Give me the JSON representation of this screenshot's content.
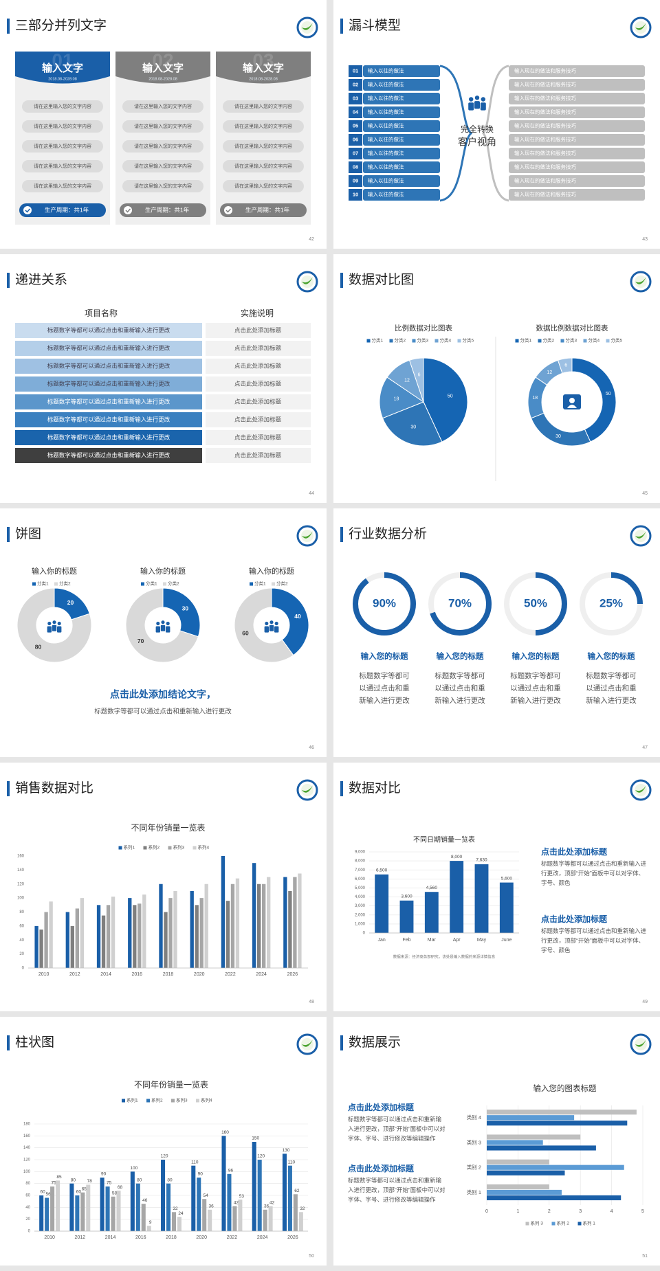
{
  "slides": [
    {
      "title": "三部分并列文字",
      "page": 42,
      "columns": [
        {
          "heading": "输入文字",
          "number": "01",
          "date": "2018.08-2028.08",
          "color": "#1a5fa8",
          "items": [
            "请在这里输入您的文字内容",
            "请在这里输入您的文字内容",
            "请在这里输入您的文字内容",
            "请在这里输入您的文字内容",
            "请在这里输入您的文字内容"
          ],
          "footer": "生产周期：共1年"
        },
        {
          "heading": "输入文字",
          "number": "02",
          "date": "2018.08-2028.08",
          "color": "#7f7f7f",
          "items": [
            "请在这里输入您的文字内容",
            "请在这里输入您的文字内容",
            "请在这里输入您的文字内容",
            "请在这里输入您的文字内容",
            "请在这里输入您的文字内容"
          ],
          "footer": "生产周期：共1年"
        },
        {
          "heading": "输入文字",
          "number": "03",
          "date": "2018.08-2028.08",
          "color": "#7f7f7f",
          "items": [
            "请在这里输入您的文字内容",
            "请在这里输入您的文字内容",
            "请在这里输入您的文字内容",
            "请在这里输入您的文字内容",
            "请在这里输入您的文字内容"
          ],
          "footer": "生产周期：共1年"
        }
      ]
    },
    {
      "title": "漏斗模型",
      "page": 43,
      "left": [
        {
          "number": "01",
          "text": "输入以往的做法"
        },
        {
          "number": "02",
          "text": "输入以往的做法"
        },
        {
          "number": "03",
          "text": "输入以往的做法"
        },
        {
          "number": "04",
          "text": "输入以往的做法"
        },
        {
          "number": "05",
          "text": "输入以往的做法"
        },
        {
          "number": "06",
          "text": "输入以往的做法"
        },
        {
          "number": "07",
          "text": "输入以往的做法"
        },
        {
          "number": "08",
          "text": "输入以往的做法"
        },
        {
          "number": "09",
          "text": "输入以往的做法"
        },
        {
          "number": "10",
          "text": "输入以往的做法"
        }
      ],
      "center": [
        "完全转换",
        "客户视角"
      ],
      "right": [
        "输入现在的做法和服务技巧",
        "输入现在的做法和服务技巧",
        "输入现在的做法和服务技巧",
        "输入现在的做法和服务技巧",
        "输入现在的做法和服务技巧",
        "输入现在的做法和服务技巧",
        "输入现在的做法和服务技巧",
        "输入现在的做法和服务技巧",
        "输入现在的做法和服务技巧",
        "输入现在的做法和服务技巧"
      ]
    },
    {
      "title": "递进关系",
      "page": 44,
      "headers": [
        "项目名称",
        "实施说明"
      ],
      "rows": [
        [
          "标题数字等都可以通过点击和重新输入进行更改",
          "点击此处添加标题"
        ],
        [
          "标题数字等都可以通过点击和重新输入进行更改",
          "点击此处添加标题"
        ],
        [
          "标题数字等都可以通过点击和重新输入进行更改",
          "点击此处添加标题"
        ],
        [
          "标题数字等都可以通过点击和重新输入进行更改",
          "点击此处添加标题"
        ],
        [
          "标题数字等都可以通过点击和重新输入进行更改",
          "点击此处添加标题"
        ],
        [
          "标题数字等都可以通过点击和重新输入进行更改",
          "点击此处添加标题"
        ],
        [
          "标题数字等都可以通过点击和重新输入进行更改",
          "点击此处添加标题"
        ],
        [
          "标题数字等都可以通过点击和重新输入进行更改",
          "点击此处添加标题"
        ]
      ],
      "row_colors": [
        "#c9dcef",
        "#b4cfe9",
        "#9fc1e3",
        "#7fadd8",
        "#5b96cb",
        "#3a80c0",
        "#1a64ac",
        "#3f3f3f"
      ]
    },
    {
      "title": "数据对比图",
      "page": 45,
      "charts": [
        {
          "type": "pie",
          "title": "比例数据对比图表",
          "categories": [
            "分类1",
            "分类2",
            "分类3",
            "分类4",
            "分类5"
          ],
          "values": [
            50,
            30,
            18,
            12,
            6
          ],
          "colors": [
            "#1565b3",
            "#2e75b6",
            "#4a8cc7",
            "#6fa3d3",
            "#9dc0e3"
          ]
        },
        {
          "type": "donut",
          "title": "数据比例数据对比图表",
          "categories": [
            "分类1",
            "分类2",
            "分类3",
            "分类4",
            "分类5"
          ],
          "values": [
            50,
            30,
            18,
            12,
            6
          ],
          "colors": [
            "#1565b3",
            "#2e75b6",
            "#4a8cc7",
            "#6fa3d3",
            "#9dc0e3"
          ]
        }
      ]
    },
    {
      "title": "饼图",
      "page": 46,
      "charts": [
        {
          "type": "donut",
          "title": "输入你的标题",
          "categories": [
            "分类1",
            "分类2"
          ],
          "values": [
            20,
            80
          ],
          "colors": [
            "#1565b3",
            "#d9d9d9"
          ]
        },
        {
          "type": "donut",
          "title": "输入你的标题",
          "categories": [
            "分类1",
            "分类2"
          ],
          "values": [
            30,
            70
          ],
          "colors": [
            "#1565b3",
            "#d9d9d9"
          ]
        },
        {
          "type": "donut",
          "title": "输入你的标题",
          "categories": [
            "分类1",
            "分类2"
          ],
          "values": [
            40,
            60
          ],
          "colors": [
            "#1565b3",
            "#d9d9d9"
          ]
        }
      ],
      "conclusion": "点击此处添加结论文字，",
      "note": "标题数字等都可以通过点击和重新输入进行更改"
    },
    {
      "title": "行业数据分析",
      "page": 47,
      "chart": {
        "type": "ring",
        "values": [
          90,
          70,
          50,
          25
        ],
        "value_labels": [
          "90%",
          "70%",
          "50%",
          "25%"
        ],
        "ylim": [
          0,
          100
        ],
        "color": "#1a5fa8"
      },
      "headings": [
        "输入您的标题",
        "输入您的标题",
        "输入您的标题",
        "输入您的标题"
      ],
      "texts": [
        [
          "标题数字等都可",
          "以通过点击和重",
          "新输入进行更改"
        ],
        [
          "标题数字等都可",
          "以通过点击和重",
          "新输入进行更改"
        ],
        [
          "标题数字等都可",
          "以通过点击和重",
          "新输入进行更改"
        ],
        [
          "标题数字等都可",
          "以通过点击和重",
          "新输入进行更改"
        ]
      ]
    },
    {
      "title": "销售数据对比",
      "page": 48,
      "chart": {
        "type": "bar",
        "title": "不同年份销量一览表",
        "categories": [
          "2010",
          "2012",
          "2014",
          "2016",
          "2018",
          "2020",
          "2022",
          "2024",
          "2026"
        ],
        "series": [
          {
            "name": "系列1",
            "color": "#1a5fa8",
            "values": [
              60,
              80,
              90,
              100,
              120,
              110,
              160,
              150,
              130
            ]
          },
          {
            "name": "系列2",
            "color": "#7f7f7f",
            "values": [
              55,
              60,
              75,
              90,
              80,
              90,
              96,
              120,
              110
            ]
          },
          {
            "name": "系列3",
            "color": "#a6a6a6",
            "values": [
              80,
              85,
              90,
              92,
              100,
              100,
              120,
              120,
              130
            ]
          },
          {
            "name": "系列4",
            "color": "#d0d0d0",
            "values": [
              95,
              100,
              102,
              105,
              110,
              120,
              128,
              130,
              135
            ]
          }
        ],
        "ylim": [
          0,
          160
        ],
        "yticks": [
          0,
          20,
          40,
          60,
          80,
          100,
          120,
          140,
          160
        ],
        "grid": false
      }
    },
    {
      "title": "数据对比",
      "page": 49,
      "chart": {
        "type": "bar",
        "title": "不同日期销量一览表",
        "categories": [
          "Jan",
          "Feb",
          "Mar",
          "Apr",
          "May",
          "June"
        ],
        "values": [
          6500,
          3600,
          4560,
          8000,
          7630,
          5600
        ],
        "value_labels": [
          "6,500",
          "3,600",
          "4,560",
          "8,000",
          "7,630",
          "5,600"
        ],
        "color": "#1a5fa8",
        "ylim": [
          0,
          9000
        ],
        "yticks": [
          0,
          {
            "value": 1000,
            "label": "1,000"
          },
          {
            "value": 2000,
            "label": "2,000"
          },
          {
            "value": 3000,
            "label": "3,000"
          },
          {
            "value": 4000,
            "label": "4,000"
          },
          {
            "value": 5000,
            "label": "5,000"
          },
          {
            "value": 6000,
            "label": "6,000"
          },
          {
            "value": 7000,
            "label": "7,000"
          },
          {
            "value": 8000,
            "label": "8,000"
          },
          {
            "value": 9000,
            "label": "9,000"
          }
        ],
        "grid": true,
        "note": "数据来源：经济商务部研究，该处是输入数据的来源详情信息"
      },
      "blocks": [
        {
          "heading": "点击此处添加标题",
          "text": "标题数字等都可以通过点击和重新输入进行更改，顶部“开始”面板中可以对字体、字号、颜色"
        },
        {
          "heading": "点击此处添加标题",
          "text": "标题数字等都可以通过点击和重新输入进行更改，顶部“开始”面板中可以对字体、字号、颜色"
        }
      ]
    },
    {
      "title": "柱状图",
      "page": 50,
      "chart": {
        "type": "bar",
        "title": "不同年份销量一览表",
        "categories": [
          "2010",
          "2012",
          "2014",
          "2016",
          "2018",
          "2020",
          "2022",
          "2024",
          "2026"
        ],
        "series": [
          {
            "name": "系列1",
            "color": "#1a5fa8",
            "values": [
              60,
              80,
              90,
              100,
              120,
              110,
              160,
              150,
              130
            ]
          },
          {
            "name": "系列2",
            "color": "#2e75b6",
            "values": [
              56,
              60,
              75,
              80,
              80,
              90,
              96,
              120,
              110
            ]
          },
          {
            "name": "系列3",
            "color": "#a6a6a6",
            "values": [
              75,
              65,
              58,
              46,
              32,
              54,
              42,
              36,
              62
            ]
          },
          {
            "name": "系列4",
            "color": "#d0d0d0",
            "values": [
              85,
              78,
              68,
              9,
              24,
              36,
              53,
              42,
              32
            ]
          }
        ],
        "ylim": [
          0,
          180
        ],
        "yticks": [
          0,
          20,
          40,
          60,
          80,
          100,
          120,
          140,
          160,
          180
        ],
        "grid": true,
        "data_labels": true
      }
    },
    {
      "title": "数据展示",
      "page": 51,
      "chart": {
        "type": "hbar",
        "title": "输入您的图表标题",
        "categories": [
          "类别 1",
          "类别 2",
          "类别 3",
          "类别 4"
        ],
        "series": [
          {
            "name": "系列 3",
            "color": "#bfbfbf",
            "values": [
              2,
              2,
              3,
              4.8
            ]
          },
          {
            "name": "系列 2",
            "color": "#5b9bd5",
            "values": [
              2.4,
              4.4,
              1.8,
              2.8
            ]
          },
          {
            "name": "系列 1",
            "color": "#1a5fa8",
            "values": [
              4.3,
              2.5,
              3.5,
              4.5
            ]
          }
        ],
        "xlim": [
          0,
          5
        ],
        "xticks": [
          0,
          1,
          2,
          3,
          4,
          5
        ],
        "grid": true
      },
      "blocks": [
        {
          "heading": "点击此处添加标题",
          "text": "标题数字等都可以通过点击和重新输入进行更改，顶部“开始”面板中可以对字体、字号、进行修改等编辑操作"
        },
        {
          "heading": "点击此处添加标题",
          "text": "标题数字等都可以通过点击和重新输入进行更改，顶部“开始”面板中可以对字体、字号、进行修改等编辑操作"
        }
      ]
    }
  ]
}
